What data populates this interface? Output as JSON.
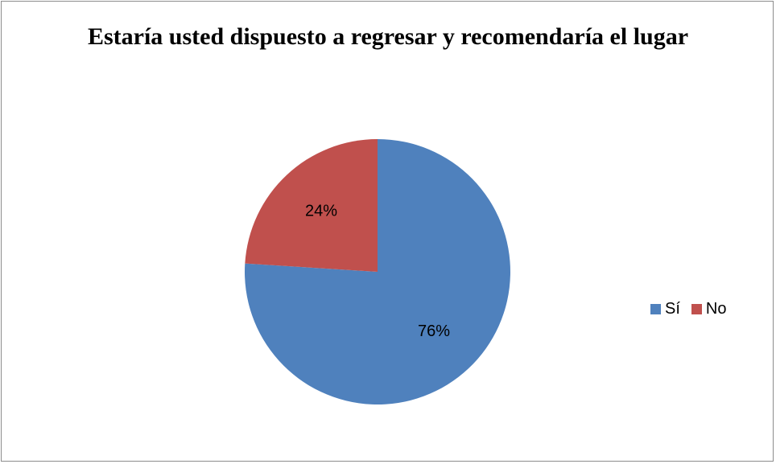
{
  "chart_data": {
    "type": "pie",
    "title": "Estaría usted dispuesto a regresar y recomendaría el lugar",
    "categories": [
      "Sí",
      "No"
    ],
    "values": [
      76,
      24
    ],
    "labels": [
      "76%",
      "24%"
    ],
    "colors": [
      "#4F81BD",
      "#C0504D"
    ],
    "legend_position": "right"
  }
}
